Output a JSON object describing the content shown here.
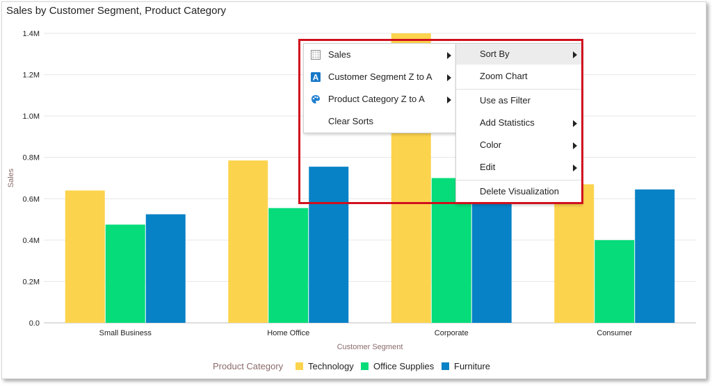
{
  "title": "Sales by Customer Segment, Product Category",
  "chart_data": {
    "type": "bar",
    "title": "Sales by Customer Segment, Product Category",
    "xlabel": "Customer Segment",
    "ylabel": "Sales",
    "ylim": [
      0,
      1400000
    ],
    "yticks": [
      {
        "value": 0,
        "label": "0.0"
      },
      {
        "value": 200000,
        "label": "0.2M"
      },
      {
        "value": 400000,
        "label": "0.4M"
      },
      {
        "value": 600000,
        "label": "0.6M"
      },
      {
        "value": 800000,
        "label": "0.8M"
      },
      {
        "value": 1000000,
        "label": "1.0M"
      },
      {
        "value": 1200000,
        "label": "1.2M"
      },
      {
        "value": 1400000,
        "label": "1.4M"
      }
    ],
    "categories": [
      "Small Business",
      "Home Office",
      "Corporate",
      "Consumer"
    ],
    "series": [
      {
        "name": "Technology",
        "color": "#fcd34d",
        "values": [
          640000,
          785000,
          1400000,
          670000
        ]
      },
      {
        "name": "Office Supplies",
        "color": "#06dc7a",
        "values": [
          475000,
          555000,
          700000,
          400000
        ]
      },
      {
        "name": "Furniture",
        "color": "#0782c6",
        "values": [
          525000,
          755000,
          575000,
          645000
        ]
      }
    ],
    "legend": {
      "title": "Product Category",
      "position": "bottom"
    },
    "grid": true
  },
  "menu": {
    "left": [
      {
        "label": "Sales",
        "icon": "table-icon",
        "has_submenu": true
      },
      {
        "label": "Customer Segment Z to A",
        "icon": "text-a-icon",
        "has_submenu": true
      },
      {
        "label": "Product Category Z to A",
        "icon": "palette-icon",
        "has_submenu": true
      },
      {
        "label": "Clear Sorts",
        "icon": "",
        "has_submenu": false
      }
    ],
    "right": [
      {
        "label": "Sort By",
        "has_submenu": true,
        "highlighted": true
      },
      {
        "label": "Zoom Chart",
        "has_submenu": false
      },
      {
        "label": "Use as Filter",
        "has_submenu": false
      },
      {
        "label": "Add Statistics",
        "has_submenu": true
      },
      {
        "label": "Color",
        "has_submenu": true
      },
      {
        "label": "Edit",
        "has_submenu": true
      },
      {
        "label": "Delete Visualization",
        "has_submenu": false
      }
    ]
  },
  "annotation": {
    "color": "#d0101e"
  }
}
